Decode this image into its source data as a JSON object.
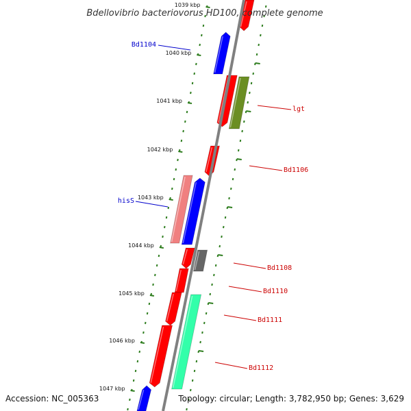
{
  "title": "Bdellovibrio bacteriovorus HD100, complete genome",
  "footer": {
    "accession": "Accession: NC_005363",
    "topology": "Topology: circular; Length: 3,782,950 bp; Genes: 3,629"
  },
  "colors": {
    "backbone": "#808080",
    "tick": "#2e7d1e",
    "red": "#ff0000",
    "blue": "#0000ff",
    "olive": "#6b8e23",
    "pink": "#f08080",
    "gray": "#666666",
    "aqua": "#33ffaa",
    "label_red": "#cc0000",
    "label_blue": "#0000cc"
  },
  "kbp_labels": [
    "1039 kbp",
    "1040 kbp",
    "1041 kbp",
    "1042 kbp",
    "1043 kbp",
    "1044 kbp",
    "1045 kbp",
    "1046 kbp",
    "1047 kbp"
  ],
  "gene_labels": [
    {
      "id": "bd1104",
      "text": "Bd1104",
      "color": "#0000cc"
    },
    {
      "id": "lgt",
      "text": "lgt",
      "color": "#cc0000"
    },
    {
      "id": "bd1106",
      "text": "Bd1106",
      "color": "#cc0000"
    },
    {
      "id": "hiss",
      "text": "hisS",
      "color": "#0000cc"
    },
    {
      "id": "bd1108",
      "text": "Bd1108",
      "color": "#cc0000"
    },
    {
      "id": "bd1110",
      "text": "Bd1110",
      "color": "#cc0000"
    },
    {
      "id": "bd1111",
      "text": "Bd1111",
      "color": "#cc0000"
    },
    {
      "id": "bd1112",
      "text": "Bd1112",
      "color": "#cc0000"
    }
  ]
}
